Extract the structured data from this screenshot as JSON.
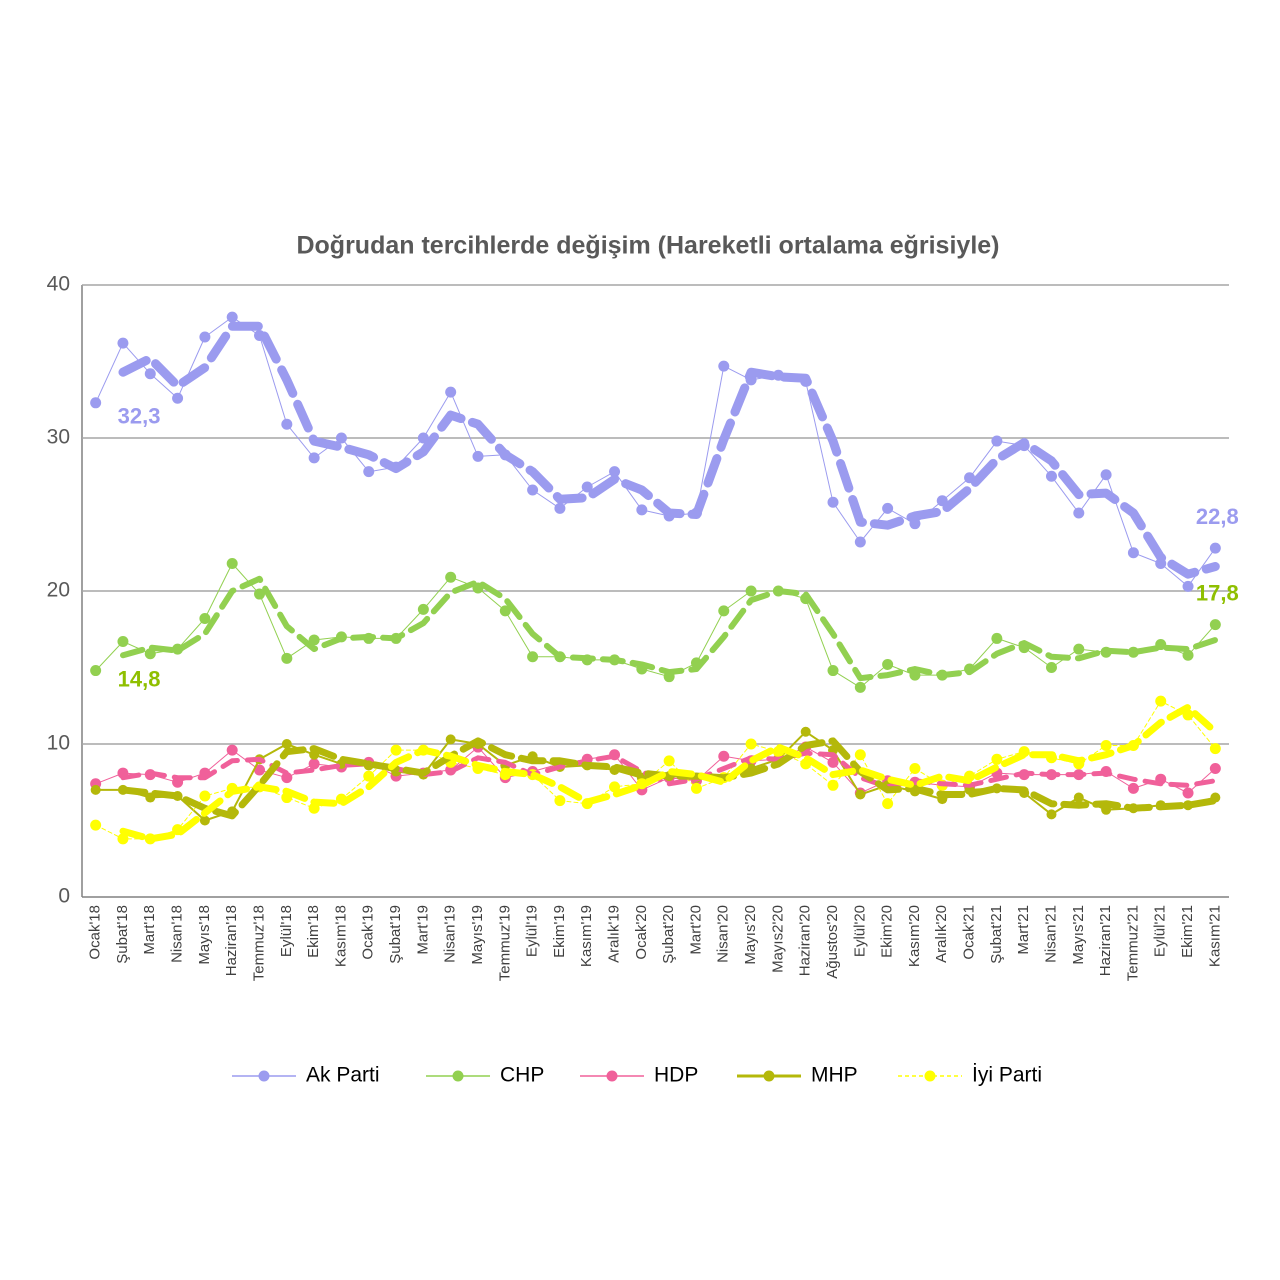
{
  "chart_data": {
    "type": "line",
    "title": "Doğrudan tercihlerde değişim (Hareketli ortalama eğrisiyle)",
    "categories": [
      "Ocak'18",
      "Şubat'18",
      "Mart'18",
      "Nisan'18",
      "Mayıs'18",
      "Haziran'18",
      "Temmuz'18",
      "Eylül'18",
      "Ekim'18",
      "Kasım'18",
      "Ocak'19",
      "Şubat'19",
      "Mart'19",
      "Nisan'19",
      "Mayıs'19",
      "Temmuz'19",
      "Eylül'19",
      "Ekim'19",
      "Kasım'19",
      "Aralık'19",
      "Ocak'20",
      "Şubat'20",
      "Mart'20",
      "Nisan'20",
      "Mayıs'20",
      "Mayıs2'20",
      "Haziran'20",
      "Ağustos'20",
      "Eylül'20",
      "Ekim'20",
      "Kasım'20",
      "Aralık'20",
      "Ocak'21",
      "Şubat'21",
      "Mart'21",
      "Nisan'21",
      "Mayıs'21",
      "Haziran'21",
      "Temmuz'21",
      "Eylül'21",
      "Ekim'21",
      "Kasım'21"
    ],
    "ylim": [
      0,
      40
    ],
    "yticks": [
      0,
      10,
      20,
      30,
      40
    ],
    "grid": true,
    "series": [
      {
        "name": "Ak Parti",
        "color": "#9b9bef",
        "values": [
          32.3,
          36.2,
          34.2,
          32.6,
          36.6,
          37.9,
          36.7,
          30.9,
          28.7,
          30.0,
          27.8,
          28.1,
          30.0,
          33.0,
          28.8,
          28.9,
          26.6,
          25.4,
          26.8,
          27.8,
          25.3,
          24.9,
          25.1,
          34.7,
          33.8,
          34.1,
          33.7,
          25.8,
          23.2,
          25.4,
          24.4,
          25.9,
          27.4,
          29.8,
          29.5,
          27.5,
          25.1,
          27.6,
          22.5,
          21.8,
          20.3,
          22.8
        ],
        "trend": [
          null,
          34.3,
          35.2,
          33.4,
          34.6,
          37.3,
          37.3,
          33.8,
          29.8,
          29.4,
          28.9,
          28.0,
          29.1,
          31.5,
          30.9,
          28.9,
          27.8,
          26.0,
          26.1,
          27.3,
          26.6,
          25.1,
          25.0,
          29.9,
          34.3,
          34.0,
          33.9,
          29.8,
          24.5,
          24.3,
          24.9,
          25.2,
          26.7,
          28.6,
          29.7,
          28.5,
          26.3,
          26.4,
          25.1,
          22.2,
          21.1,
          21.6
        ],
        "value_labels": [
          "32,3",
          null,
          null,
          null,
          null,
          null,
          null,
          null,
          null,
          null,
          null,
          null,
          null,
          null,
          null,
          null,
          null,
          null,
          null,
          null,
          null,
          null,
          null,
          null,
          null,
          null,
          null,
          null,
          null,
          null,
          null,
          null,
          null,
          null,
          null,
          null,
          null,
          null,
          null,
          null,
          null,
          "22,8"
        ]
      },
      {
        "name": "CHP",
        "color": "#92d050",
        "values": [
          14.8,
          16.7,
          15.9,
          16.2,
          18.2,
          21.8,
          19.8,
          15.6,
          16.8,
          17.0,
          16.9,
          16.9,
          18.8,
          20.9,
          20.2,
          18.7,
          15.7,
          15.7,
          15.5,
          15.5,
          14.9,
          14.4,
          15.3,
          18.7,
          20.0,
          20.0,
          19.5,
          14.8,
          13.7,
          15.2,
          14.5,
          14.5,
          14.9,
          16.9,
          16.3,
          15.0,
          16.2,
          16.0,
          16.0,
          16.5,
          15.8,
          17.8
        ],
        "trend": [
          null,
          15.8,
          16.3,
          16.1,
          17.2,
          20.0,
          20.8,
          17.7,
          16.2,
          16.9,
          17.0,
          16.9,
          17.9,
          19.9,
          20.6,
          19.5,
          17.2,
          15.7,
          15.6,
          15.5,
          15.2,
          14.7,
          14.9,
          17.0,
          19.4,
          20.0,
          19.8,
          17.2,
          14.3,
          14.5,
          14.9,
          14.5,
          14.7,
          15.9,
          16.6,
          15.7,
          15.6,
          16.1,
          16.0,
          16.3,
          16.2,
          16.8
        ],
        "value_labels": [
          "14,8",
          null,
          null,
          null,
          null,
          null,
          null,
          null,
          null,
          null,
          null,
          null,
          null,
          null,
          null,
          null,
          null,
          null,
          null,
          null,
          null,
          null,
          null,
          null,
          null,
          null,
          null,
          null,
          null,
          null,
          null,
          null,
          null,
          null,
          null,
          null,
          null,
          null,
          null,
          null,
          null,
          "17,8"
        ]
      },
      {
        "name": "HDP",
        "color": "#f0609a",
        "values": [
          7.4,
          8.1,
          8.0,
          7.5,
          8.1,
          9.6,
          8.3,
          7.8,
          8.7,
          8.5,
          8.8,
          7.9,
          8.1,
          8.3,
          9.8,
          7.8,
          8.2,
          8.7,
          9.0,
          9.3,
          7.0,
          7.8,
          7.6,
          9.2,
          8.9,
          9.0,
          9.8,
          8.8,
          6.8,
          7.6,
          7.5,
          7.3,
          7.2,
          8.1,
          8.0,
          8.0,
          8.0,
          8.2,
          7.1,
          7.7,
          6.8,
          8.4
        ],
        "trend": [
          null,
          7.8,
          8.1,
          7.8,
          7.8,
          8.9,
          9.0,
          8.1,
          8.3,
          8.6,
          8.7,
          8.4,
          8.0,
          8.2,
          9.1,
          8.8,
          8.0,
          8.5,
          8.9,
          9.2,
          8.2,
          7.4,
          7.7,
          8.4,
          9.1,
          9.0,
          9.4,
          9.3,
          7.8,
          7.2,
          7.6,
          7.4,
          7.3,
          7.7,
          8.1,
          8.0,
          8.0,
          8.1,
          7.7,
          7.4,
          7.3,
          7.6
        ]
      },
      {
        "name": "MHP",
        "color": "#b4b80a",
        "values": [
          7.0,
          7.0,
          6.5,
          6.6,
          5.0,
          5.6,
          9.0,
          10.0,
          9.3,
          8.7,
          8.6,
          8.2,
          8.0,
          10.3,
          10.0,
          8.6,
          9.2,
          8.5,
          8.6,
          8.3,
          7.8,
          7.9,
          7.8,
          7.8,
          8.4,
          9.0,
          10.8,
          9.6,
          6.7,
          7.3,
          6.9,
          6.4,
          7.0,
          7.1,
          6.8,
          5.4,
          6.5,
          5.7,
          5.8,
          6.0,
          6.0,
          6.5
        ],
        "trend": [
          null,
          7.0,
          6.8,
          6.6,
          5.8,
          5.3,
          7.3,
          9.5,
          9.7,
          9.0,
          8.7,
          8.4,
          8.1,
          9.2,
          10.2,
          9.3,
          8.9,
          8.9,
          8.6,
          8.5,
          8.1,
          7.9,
          7.9,
          7.8,
          8.1,
          8.7,
          9.9,
          10.2,
          8.2,
          7.0,
          7.1,
          6.7,
          6.7,
          7.1,
          7.0,
          6.1,
          6.0,
          6.1,
          5.8,
          5.9,
          6.0,
          6.3
        ]
      },
      {
        "name": "İyi Parti",
        "color": "#ffff00",
        "values": [
          4.7,
          3.8,
          3.8,
          4.4,
          6.6,
          7.1,
          7.2,
          6.5,
          5.8,
          6.4,
          7.9,
          9.6,
          9.6,
          8.8,
          8.4,
          8.0,
          8.0,
          6.3,
          6.1,
          7.2,
          7.4,
          8.9,
          7.1,
          7.8,
          10.0,
          9.5,
          8.7,
          7.3,
          9.3,
          6.1,
          8.4,
          7.3,
          7.9,
          9.0,
          9.5,
          9.1,
          8.7,
          9.9,
          9.9,
          12.8,
          11.9,
          9.7
        ],
        "trend": [
          null,
          4.3,
          3.8,
          4.1,
          5.5,
          6.9,
          7.2,
          6.9,
          6.2,
          6.1,
          7.2,
          8.8,
          9.6,
          9.2,
          8.6,
          8.2,
          8.0,
          7.2,
          6.2,
          6.7,
          7.3,
          8.2,
          8.0,
          7.5,
          8.9,
          9.8,
          9.1,
          8.0,
          8.3,
          7.7,
          7.3,
          7.9,
          7.6,
          8.5,
          9.3,
          9.3,
          8.9,
          9.3,
          9.9,
          11.4,
          12.4,
          10.8
        ]
      }
    ]
  }
}
